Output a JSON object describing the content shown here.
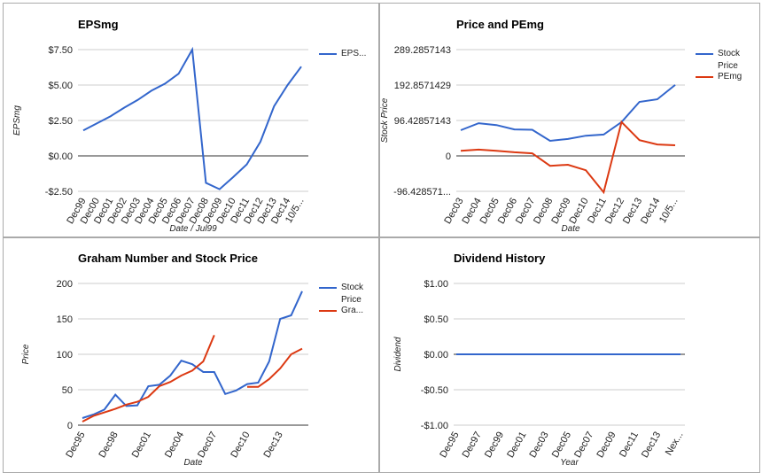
{
  "chart_data": [
    {
      "type": "line",
      "title": "EPSmg",
      "x_label": "Date / Jul99",
      "y_label": "EPSmg",
      "categories": [
        "Dec99",
        "Dec00",
        "Dec01",
        "Dec02",
        "Dec03",
        "Dec04",
        "Dec05",
        "Dec06",
        "Dec07",
        "Dec08",
        "Dec09",
        "Dec10",
        "Dec11",
        "Dec12",
        "Dec13",
        "Dec14",
        "10/5..."
      ],
      "series": [
        {
          "name": "EPS...",
          "color": "#3366cc",
          "values": [
            1.8,
            2.3,
            2.8,
            3.4,
            3.95,
            4.6,
            5.1,
            5.8,
            7.5,
            -1.9,
            -2.35,
            -1.5,
            -0.6,
            1.0,
            3.5,
            5.0,
            6.3
          ]
        }
      ],
      "ylim": [
        -2.5,
        7.5
      ],
      "yticks": [
        {
          "value": -2.5,
          "label": "-$2.50"
        },
        {
          "value": 0,
          "label": "$0.00"
        },
        {
          "value": 2.5,
          "label": "$2.50"
        },
        {
          "value": 5,
          "label": "$5.00"
        },
        {
          "value": 7.5,
          "label": "$7.50"
        }
      ],
      "grid": true
    },
    {
      "type": "line",
      "title": "Price and PEmg",
      "x_label": "Date",
      "y_label": "Stock Price",
      "categories": [
        "Dec03",
        "Dec04",
        "Dec05",
        "Dec06",
        "Dec07",
        "Dec08",
        "Dec09",
        "Dec10",
        "Dec11",
        "Dec12",
        "Dec13",
        "Dec14",
        "10/5..."
      ],
      "series": [
        {
          "name": "Stock Price",
          "color": "#3366cc",
          "values": [
            70,
            89,
            84,
            72,
            71,
            41,
            46,
            55,
            58,
            92,
            147,
            154,
            193
          ]
        },
        {
          "name": "PEmg",
          "color": "#dc3912",
          "values": [
            14,
            17,
            14,
            10,
            7,
            -27,
            -24,
            -39,
            -99,
            92,
            43,
            31,
            29
          ]
        }
      ],
      "ylim": [
        -96.4285714,
        289.2857143
      ],
      "yticks": [
        {
          "value": -96.4285714,
          "label": "-96.428571..."
        },
        0,
        96.42857143,
        192.8571429,
        289.2857143
      ],
      "grid": true
    },
    {
      "type": "line",
      "title": "Graham Number and Stock Price",
      "x_label": "Date",
      "y_label": "Price",
      "categories": [
        "Dec95",
        null,
        null,
        "Dec98",
        null,
        null,
        "Dec01",
        null,
        null,
        "Dec04",
        null,
        null,
        "Dec07",
        null,
        null,
        "Dec10",
        null,
        null,
        "Dec13",
        null,
        null
      ],
      "series": [
        {
          "name": "Stock Price",
          "color": "#3366cc",
          "values": [
            10,
            15,
            22,
            43,
            27,
            28,
            55,
            57,
            70,
            91,
            86,
            75,
            75,
            44,
            49,
            58,
            60,
            90,
            150,
            155,
            189
          ]
        },
        {
          "name": "Gra...",
          "color": "#dc3912",
          "values": [
            5,
            13,
            18,
            23,
            29,
            33,
            40,
            55,
            61,
            70,
            77,
            90,
            127,
            null,
            null,
            54,
            54,
            65,
            80,
            100,
            108
          ]
        }
      ],
      "ylim": [
        0,
        200
      ],
      "yticks": [
        0,
        50,
        100,
        150,
        200
      ],
      "grid": true
    },
    {
      "type": "line",
      "title": "Dividend History",
      "x_label": "Year",
      "y_label": "Dividend",
      "categories": [
        "Dec95",
        "Dec97",
        "Dec99",
        "Dec01",
        "Dec03",
        "Dec05",
        "Dec07",
        "Dec09",
        "Dec11",
        "Dec13",
        "Nex..."
      ],
      "series": [
        {
          "color": "#3366cc",
          "values": [
            0,
            0,
            0,
            0,
            0,
            0,
            0,
            0,
            0,
            0,
            0
          ]
        }
      ],
      "ylim": [
        -1,
        1
      ],
      "yticks": [
        {
          "value": -1,
          "label": "-$1.00"
        },
        {
          "value": -0.5,
          "label": "-$0.50"
        },
        {
          "value": 0,
          "label": "$0.00"
        },
        {
          "value": 0.5,
          "label": "$0.50"
        },
        {
          "value": 1,
          "label": "$1.00"
        }
      ],
      "grid": true
    }
  ]
}
